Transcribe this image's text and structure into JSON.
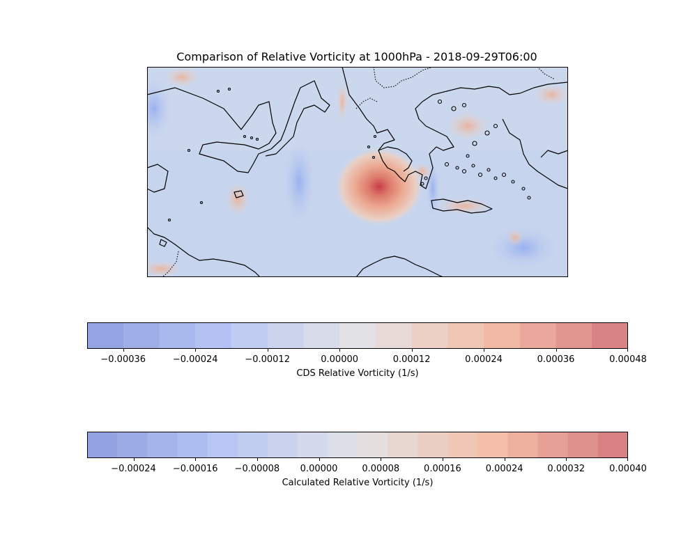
{
  "title": "Comparison of Relative Vorticity at 1000hPa - 2018-09-29T06:00",
  "colorbars": [
    {
      "label": "CDS Relative Vorticity (1/s)",
      "vmin": -0.00042,
      "vmax": 0.00048,
      "step": 6e-05,
      "ticks": [
        "−0.00036",
        "−0.00024",
        "−0.00012",
        "0.00000",
        "0.00012",
        "0.00024",
        "0.00036",
        "0.00048"
      ],
      "tick_values": [
        -0.00036,
        -0.00024,
        -0.00012,
        0.0,
        0.00012,
        0.00024,
        0.00036,
        0.00048
      ]
    },
    {
      "label": "Calculated Relative Vorticity (1/s)",
      "vmin": -0.0003,
      "vmax": 0.0004,
      "step": 4e-05,
      "ticks": [
        "−0.00024",
        "−0.00016",
        "−0.00008",
        "0.00000",
        "0.00008",
        "0.00016",
        "0.00024",
        "0.00032",
        "0.00040"
      ],
      "tick_values": [
        -0.00024,
        -0.00016,
        -8e-05,
        0.0,
        8e-05,
        0.00016,
        0.00024,
        0.00032,
        0.0004
      ]
    }
  ],
  "colormap": "coolwarm",
  "colors": {
    "coolwarm_low": "#8f9ede",
    "coolwarm_mid": "#dcdde3",
    "coolwarm_high": "#d47a80",
    "land_edge": "#000000"
  }
}
